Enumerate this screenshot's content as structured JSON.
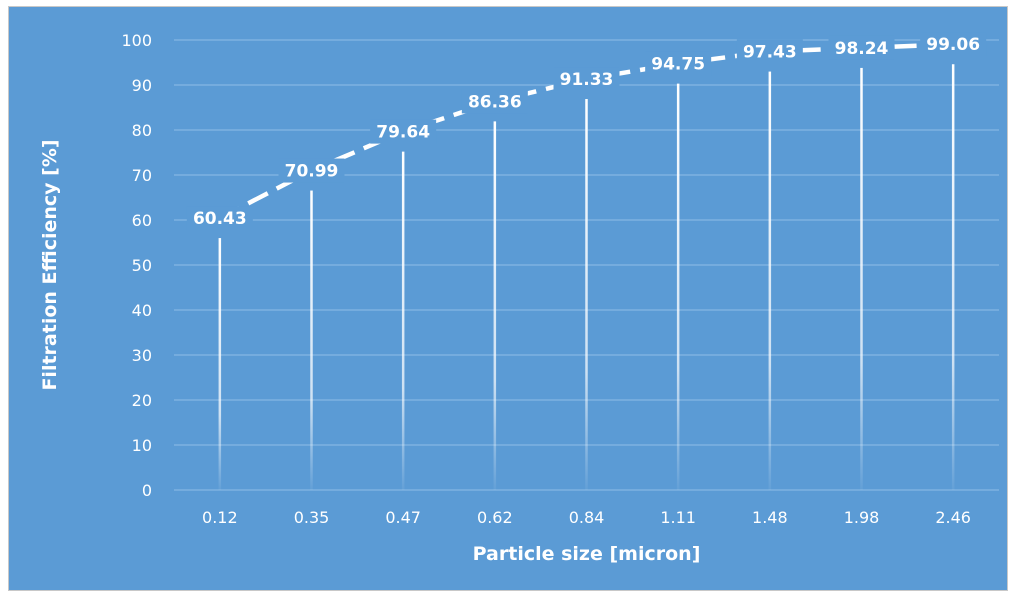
{
  "colors": {
    "background": "#5b9bd5",
    "plot_background": "#5b9bd5",
    "gridline": "#8fbde6",
    "line": "#ffffff",
    "text": "#ffffff"
  },
  "chart_data": {
    "type": "line",
    "title": "",
    "xlabel": "Particle size [micron]",
    "ylabel": "Filtration Efficiency [%]",
    "categories": [
      "0.12",
      "0.35",
      "0.47",
      "0.62",
      "0.84",
      "1.11",
      "1.48",
      "1.98",
      "2.46"
    ],
    "series": [
      {
        "values": [
          60.43,
          70.99,
          79.64,
          86.36,
          91.33,
          94.75,
          97.43,
          98.24,
          99.06
        ],
        "labels": [
          "60.43",
          "70.99",
          "79.64",
          "86.36",
          "91.33",
          "94.75",
          "97.43",
          "98.24",
          "99.06"
        ],
        "line_style": "dashed",
        "drop_lines": true
      }
    ],
    "ylim": [
      0,
      100
    ],
    "yticks": [
      "0",
      "10",
      "20",
      "30",
      "40",
      "50",
      "60",
      "70",
      "80",
      "90",
      "100"
    ],
    "grid": true,
    "legend": "none"
  }
}
